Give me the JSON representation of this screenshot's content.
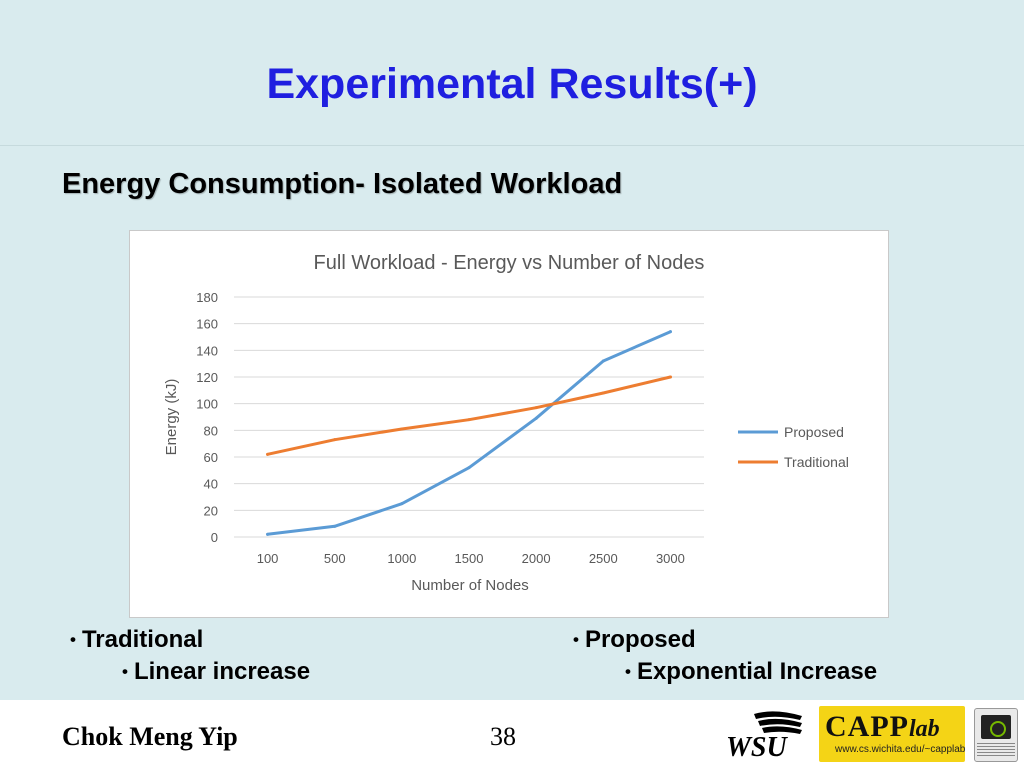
{
  "slide": {
    "title": "Experimental Results(+)",
    "subtitle": "Energy Consumption- Isolated Workload"
  },
  "colors": {
    "title": "#1f1fe0",
    "proposed": "#5b9bd5",
    "traditional": "#ed7d31"
  },
  "chart_data": {
    "type": "line",
    "title": "Full Workload - Energy vs Number of Nodes",
    "xlabel": "Number of Nodes",
    "ylabel": "Energy (kJ)",
    "categories": [
      "100",
      "500",
      "1000",
      "1500",
      "2000",
      "2500",
      "3000"
    ],
    "ylim": [
      0,
      180
    ],
    "yticks": [
      "0",
      "20",
      "40",
      "60",
      "80",
      "100",
      "120",
      "140",
      "160",
      "180"
    ],
    "grid": true,
    "legend_position": "right",
    "series": [
      {
        "name": "Proposed",
        "color": "#5b9bd5",
        "values": [
          2,
          8,
          25,
          52,
          89,
          132,
          154
        ]
      },
      {
        "name": "Traditional",
        "color": "#ed7d31",
        "values": [
          62,
          73,
          81,
          88,
          97,
          108,
          120
        ]
      }
    ]
  },
  "bullets": {
    "left": {
      "main": "Traditional",
      "sub": "Linear increase"
    },
    "right": {
      "main": "Proposed",
      "sub": "Exponential Increase"
    }
  },
  "footer": {
    "author": "Chok Meng Yip",
    "page_number": "38",
    "logos": {
      "wsu": "WSU",
      "capp": "CAPP",
      "capp_lab": "lab",
      "capp_url": "www.cs.wichita.edu/~capplab"
    }
  }
}
